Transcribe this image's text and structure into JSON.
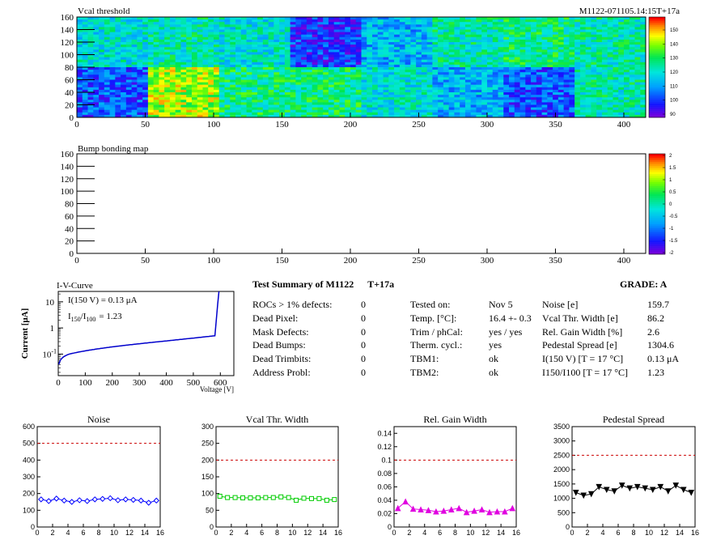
{
  "header": {
    "vcal_title": "Vcal threshold",
    "module_id": "M1122-071105.14:15T+17a",
    "bump_title": "Bump bonding map"
  },
  "maps": {
    "x_ticks": [
      "0",
      "50",
      "100",
      "150",
      "200",
      "250",
      "300",
      "350",
      "400"
    ],
    "y_ticks": [
      "0",
      "20",
      "40",
      "60",
      "80",
      "100",
      "120",
      "140",
      "160"
    ],
    "vcal_palette_ticks": [
      "90",
      "100",
      "110",
      "120",
      "130",
      "140",
      "150"
    ],
    "bump_palette_ticks": [
      "-2",
      "-1.5",
      "-1",
      "-0.5",
      "0",
      "0.5",
      "1",
      "1.5",
      "2"
    ],
    "vcal_roc_levels_top": [
      0.45,
      0.5,
      0.45,
      0.15,
      0.35,
      0.5,
      0.55,
      0.5
    ],
    "vcal_roc_levels_bottom": [
      0.2,
      0.75,
      0.55,
      0.55,
      0.45,
      0.35,
      0.2,
      0.5
    ]
  },
  "iv": {
    "title": "I-V-Curve",
    "ylabel": "Current [μA]",
    "xlabel": "Voltage [V]",
    "note1": "I(150 V) = 0.13 μA",
    "note2_main": "I",
    "note2_sub1": "150",
    "note2_mid": "/I",
    "note2_sub2": "100",
    "note2_val": "=  1.23",
    "x_ticks": [
      "0",
      "100",
      "200",
      "300",
      "400",
      "500",
      "600"
    ],
    "y_ticks": [
      "10",
      "1",
      "10"
    ],
    "y_tick_exp": "-1"
  },
  "summary": {
    "title": "Test Summary of M1122",
    "temp_tag": "T+17a",
    "grade": "GRADE:  A",
    "col1": [
      {
        "label": "ROCs > 1% defects:",
        "value": "0"
      },
      {
        "label": "Dead Pixel:",
        "value": "0"
      },
      {
        "label": "Mask Defects:",
        "value": "0"
      },
      {
        "label": "Dead Bumps:",
        "value": "0"
      },
      {
        "label": "Dead Trimbits:",
        "value": "0"
      },
      {
        "label": "Address Probl:",
        "value": "0"
      }
    ],
    "col2": [
      {
        "label": "Tested on:",
        "value": "Nov 5"
      },
      {
        "label": "Temp. [°C]:",
        "value": "16.4 +- 0.3"
      },
      {
        "label": "Trim / phCal:",
        "value": "yes / yes"
      },
      {
        "label": "Therm. cycl.:",
        "value": "yes"
      },
      {
        "label": "TBM1:",
        "value": "ok"
      },
      {
        "label": "TBM2:",
        "value": "ok"
      }
    ],
    "col3": [
      {
        "label": "Noise [e]",
        "value": "159.7"
      },
      {
        "label": "Vcal Thr. Width [e]",
        "value": "86.2"
      },
      {
        "label": "Rel. Gain Width [%]",
        "value": "2.6"
      },
      {
        "label": "Pedestal Spread [e]",
        "value": "1304.6"
      },
      {
        "label": "I(150 V) [T = 17 °C]",
        "value": "0.13 μA"
      },
      {
        "label": "I150/I100  [T = 17 °C]",
        "value": "1.23"
      }
    ]
  },
  "chart_data": [
    {
      "type": "line",
      "title": "Noise",
      "x": [
        0,
        1,
        2,
        3,
        4,
        5,
        6,
        7,
        8,
        9,
        10,
        11,
        12,
        13,
        14,
        15
      ],
      "values": [
        165,
        155,
        170,
        158,
        150,
        160,
        155,
        165,
        168,
        172,
        160,
        165,
        162,
        158,
        145,
        158
      ],
      "ylim": [
        0,
        600
      ],
      "xlim": [
        0,
        16
      ],
      "y_ticks": [
        "0",
        "100",
        "200",
        "300",
        "400",
        "500",
        "600"
      ],
      "x_ticks": [
        "0",
        "2",
        "4",
        "6",
        "8",
        "10",
        "12",
        "14",
        "16"
      ],
      "limit": 500,
      "color": "#0000ff",
      "marker": "diamond"
    },
    {
      "type": "line",
      "title": "Vcal Thr. Width",
      "x": [
        0,
        1,
        2,
        3,
        4,
        5,
        6,
        7,
        8,
        9,
        10,
        11,
        12,
        13,
        14,
        15
      ],
      "values": [
        92,
        88,
        88,
        87,
        87,
        87,
        88,
        88,
        90,
        88,
        80,
        86,
        85,
        85,
        80,
        82
      ],
      "ylim": [
        0,
        300
      ],
      "xlim": [
        0,
        16
      ],
      "y_ticks": [
        "0",
        "50",
        "100",
        "150",
        "200",
        "250",
        "300"
      ],
      "x_ticks": [
        "0",
        "2",
        "4",
        "6",
        "8",
        "10",
        "12",
        "14",
        "16"
      ],
      "limit": 200,
      "color": "#00cc00",
      "marker": "square"
    },
    {
      "type": "line",
      "title": "Rel. Gain Width",
      "x": [
        0,
        1,
        2,
        3,
        4,
        5,
        6,
        7,
        8,
        9,
        10,
        11,
        12,
        13,
        14,
        15
      ],
      "values": [
        0.028,
        0.038,
        0.027,
        0.026,
        0.025,
        0.023,
        0.024,
        0.026,
        0.028,
        0.022,
        0.024,
        0.026,
        0.022,
        0.023,
        0.023,
        0.028
      ],
      "ylim": [
        0,
        0.15
      ],
      "xlim": [
        0,
        16
      ],
      "y_ticks": [
        "0",
        "0.02",
        "0.04",
        "0.06",
        "0.08",
        "0.1",
        "0.12",
        "0.14"
      ],
      "x_ticks": [
        "0",
        "2",
        "4",
        "6",
        "8",
        "10",
        "12",
        "14",
        "16"
      ],
      "limit": 0.1,
      "color": "#e000e0",
      "marker": "triangle"
    },
    {
      "type": "line",
      "title": "Pedestal Spread",
      "x": [
        0,
        1,
        2,
        3,
        4,
        5,
        6,
        7,
        8,
        9,
        10,
        11,
        12,
        13,
        14,
        15
      ],
      "values": [
        1200,
        1100,
        1150,
        1400,
        1300,
        1250,
        1450,
        1350,
        1400,
        1350,
        1300,
        1400,
        1250,
        1450,
        1300,
        1200
      ],
      "ylim": [
        0,
        3500
      ],
      "xlim": [
        0,
        16
      ],
      "y_ticks": [
        "0",
        "500",
        "1000",
        "1500",
        "2000",
        "2500",
        "3000",
        "3500"
      ],
      "x_ticks": [
        "0",
        "2",
        "4",
        "6",
        "8",
        "10",
        "12",
        "14",
        "16"
      ],
      "limit": 2500,
      "color": "#000000",
      "marker": "triangle-down"
    }
  ]
}
